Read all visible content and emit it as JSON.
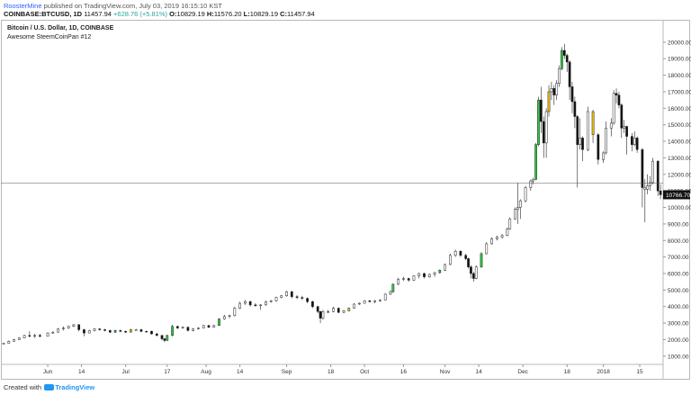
{
  "header": {
    "user": "RoosterMine",
    "published": "published on TradingView.com, July 03, 2019 16:15:10 KST",
    "symbol": "COINBASE:BTCUSD, 1D",
    "last": "11457.94",
    "change": "+628.76 (+5.81%)",
    "open_label": "O:",
    "open": "10829.19",
    "high_label": "H:",
    "high": "11576.20",
    "low_label": "L:",
    "low": "10829.19",
    "close_label": "C:",
    "close": "11457.94"
  },
  "chart_title": "Bitcoin / U.S. Dollar, 1D, COINBASE",
  "chart_subtitle": "Awesome SteemCoinPan #12",
  "footer": {
    "created": "Created with",
    "brand": "TradingView"
  },
  "colors": {
    "green": "#2ecc40",
    "yellow": "#f1c40f",
    "black": "#111111",
    "hollow": "#ffffff",
    "grid_border": "#b8b8b8"
  },
  "chart_data": {
    "type": "candlestick",
    "title": "Bitcoin / U.S. Dollar, 1D, COINBASE",
    "y_ticks": [
      1000,
      2000,
      3000,
      4000,
      5000,
      6000,
      7000,
      8000,
      9000,
      10000,
      11000,
      12000,
      13000,
      14000,
      15000,
      16000,
      17000,
      18000,
      19000,
      20000
    ],
    "y_tick_labels": [
      "1000.00",
      "2000.00",
      "3000.00",
      "4000.00",
      "5000.00",
      "6000.00",
      "7000.00",
      "8000.00",
      "9000.00",
      "10000.00",
      "11000.00",
      "12000.00",
      "13000.00",
      "14000.00",
      "15000.00",
      "16000.00",
      "17000.00",
      "18000.00",
      "19000.00",
      "20000.00"
    ],
    "ylim": [
      500,
      21300
    ],
    "x_range": [
      "2017-05-15",
      "2018-01-24"
    ],
    "x_ticks": [
      {
        "label": "Jun",
        "date": "2017-06-01"
      },
      {
        "label": "14",
        "date": "2017-06-14"
      },
      {
        "label": "Jul",
        "date": "2017-07-01"
      },
      {
        "label": "17",
        "date": "2017-07-17"
      },
      {
        "label": "Aug",
        "date": "2017-08-01"
      },
      {
        "label": "14",
        "date": "2017-08-14"
      },
      {
        "label": "Sep",
        "date": "2017-09-01"
      },
      {
        "label": "18",
        "date": "2017-09-18"
      },
      {
        "label": "Oct",
        "date": "2017-10-01"
      },
      {
        "label": "16",
        "date": "2017-10-16"
      },
      {
        "label": "Nov",
        "date": "2017-11-01"
      },
      {
        "label": "14",
        "date": "2017-11-14"
      },
      {
        "label": "Dec",
        "date": "2017-12-01"
      },
      {
        "label": "18",
        "date": "2017-12-18"
      },
      {
        "label": "2018",
        "date": "2018-01-01"
      },
      {
        "label": "15",
        "date": "2018-01-15"
      }
    ],
    "price_line": {
      "value": 11457.94,
      "label": "11457.94"
    },
    "price_label": {
      "value": 10766.7,
      "label": "10766.70"
    },
    "candles": [
      [
        "2017-05-15",
        1750,
        1800,
        1720,
        1780,
        "h"
      ],
      [
        "2017-05-17",
        1780,
        1950,
        1770,
        1900,
        "h"
      ],
      [
        "2017-05-19",
        1900,
        2050,
        1880,
        2000,
        "h"
      ],
      [
        "2017-05-21",
        2000,
        2150,
        1980,
        2100,
        "h"
      ],
      [
        "2017-05-23",
        2100,
        2300,
        2080,
        2250,
        "h"
      ],
      [
        "2017-05-25",
        2250,
        2500,
        2150,
        2200,
        "b"
      ],
      [
        "2017-05-27",
        2200,
        2350,
        2100,
        2250,
        "h"
      ],
      [
        "2017-05-29",
        2250,
        2350,
        2150,
        2200,
        "b"
      ],
      [
        "2017-06-01",
        2200,
        2450,
        2180,
        2400,
        "h"
      ],
      [
        "2017-06-03",
        2400,
        2500,
        2350,
        2450,
        "h"
      ],
      [
        "2017-06-05",
        2450,
        2700,
        2420,
        2650,
        "h"
      ],
      [
        "2017-06-07",
        2650,
        2800,
        2550,
        2700,
        "h"
      ],
      [
        "2017-06-09",
        2700,
        2850,
        2650,
        2800,
        "h"
      ],
      [
        "2017-06-11",
        2800,
        2950,
        2750,
        2900,
        "h"
      ],
      [
        "2017-06-13",
        2900,
        2950,
        2500,
        2600,
        "b"
      ],
      [
        "2017-06-15",
        2600,
        2650,
        2200,
        2400,
        "b"
      ],
      [
        "2017-06-17",
        2400,
        2600,
        2380,
        2550,
        "h"
      ],
      [
        "2017-06-19",
        2550,
        2700,
        2500,
        2650,
        "h"
      ],
      [
        "2017-06-21",
        2650,
        2700,
        2550,
        2600,
        "b"
      ],
      [
        "2017-06-23",
        2600,
        2650,
        2500,
        2550,
        "b"
      ],
      [
        "2017-06-25",
        2550,
        2600,
        2400,
        2450,
        "b"
      ],
      [
        "2017-06-27",
        2450,
        2600,
        2400,
        2550,
        "g"
      ],
      [
        "2017-06-29",
        2550,
        2600,
        2450,
        2500,
        "b"
      ],
      [
        "2017-07-01",
        2500,
        2550,
        2400,
        2450,
        "b"
      ],
      [
        "2017-07-03",
        2450,
        2650,
        2430,
        2600,
        "y"
      ],
      [
        "2017-07-05",
        2600,
        2650,
        2550,
        2600,
        "h"
      ],
      [
        "2017-07-07",
        2600,
        2650,
        2450,
        2500,
        "b"
      ],
      [
        "2017-07-09",
        2500,
        2550,
        2450,
        2500,
        "b"
      ],
      [
        "2017-07-11",
        2500,
        2550,
        2300,
        2350,
        "b"
      ],
      [
        "2017-07-13",
        2350,
        2400,
        2200,
        2250,
        "b"
      ],
      [
        "2017-07-15",
        2250,
        2300,
        1950,
        2050,
        "b"
      ],
      [
        "2017-07-16",
        2050,
        2100,
        1850,
        1950,
        "b"
      ],
      [
        "2017-07-17",
        1950,
        2300,
        1930,
        2250,
        "g"
      ],
      [
        "2017-07-19",
        2250,
        2900,
        2200,
        2800,
        "g"
      ],
      [
        "2017-07-21",
        2800,
        2850,
        2650,
        2700,
        "b"
      ],
      [
        "2017-07-23",
        2700,
        2800,
        2650,
        2750,
        "h"
      ],
      [
        "2017-07-25",
        2750,
        2800,
        2500,
        2550,
        "b"
      ],
      [
        "2017-07-27",
        2550,
        2700,
        2500,
        2650,
        "h"
      ],
      [
        "2017-07-29",
        2650,
        2750,
        2600,
        2700,
        "h"
      ],
      [
        "2017-07-31",
        2700,
        2900,
        2680,
        2850,
        "h"
      ],
      [
        "2017-08-02",
        2850,
        2900,
        2700,
        2750,
        "b"
      ],
      [
        "2017-08-04",
        2750,
        2900,
        2720,
        2850,
        "h"
      ],
      [
        "2017-08-06",
        2850,
        3300,
        2840,
        3250,
        "g"
      ],
      [
        "2017-08-08",
        3250,
        3500,
        3200,
        3400,
        "h"
      ],
      [
        "2017-08-10",
        3400,
        3500,
        3300,
        3450,
        "h"
      ],
      [
        "2017-08-12",
        3450,
        4000,
        3400,
        3900,
        "h"
      ],
      [
        "2017-08-14",
        3900,
        4300,
        3850,
        4200,
        "h"
      ],
      [
        "2017-08-16",
        4200,
        4400,
        4100,
        4300,
        "h"
      ],
      [
        "2017-08-18",
        4300,
        4350,
        4000,
        4100,
        "b"
      ],
      [
        "2017-08-20",
        4100,
        4200,
        4000,
        4050,
        "b"
      ],
      [
        "2017-08-22",
        4050,
        4150,
        3800,
        4100,
        "h"
      ],
      [
        "2017-08-24",
        4100,
        4350,
        4050,
        4300,
        "h"
      ],
      [
        "2017-08-26",
        4300,
        4400,
        4250,
        4350,
        "h"
      ],
      [
        "2017-08-28",
        4350,
        4600,
        4300,
        4550,
        "h"
      ],
      [
        "2017-08-30",
        4550,
        4700,
        4500,
        4650,
        "h"
      ],
      [
        "2017-09-01",
        4650,
        4950,
        4600,
        4900,
        "h"
      ],
      [
        "2017-09-03",
        4900,
        4950,
        4500,
        4600,
        "b"
      ],
      [
        "2017-09-05",
        4600,
        4700,
        4450,
        4550,
        "b"
      ],
      [
        "2017-09-07",
        4550,
        4650,
        4400,
        4500,
        "b"
      ],
      [
        "2017-09-09",
        4500,
        4550,
        4200,
        4300,
        "b"
      ],
      [
        "2017-09-11",
        4300,
        4350,
        3900,
        4000,
        "b"
      ],
      [
        "2017-09-13",
        4000,
        4050,
        3600,
        3700,
        "b"
      ],
      [
        "2017-09-14",
        3700,
        3750,
        3000,
        3300,
        "b"
      ],
      [
        "2017-09-15",
        3300,
        3800,
        3200,
        3700,
        "h"
      ],
      [
        "2017-09-17",
        3700,
        3800,
        3600,
        3700,
        "h"
      ],
      [
        "2017-09-19",
        3700,
        4000,
        3650,
        3900,
        "h"
      ],
      [
        "2017-09-21",
        3900,
        3950,
        3600,
        3650,
        "b"
      ],
      [
        "2017-09-23",
        3650,
        3800,
        3600,
        3750,
        "h"
      ],
      [
        "2017-09-25",
        3750,
        3950,
        3700,
        3900,
        "y"
      ],
      [
        "2017-09-27",
        3900,
        4200,
        3880,
        4150,
        "h"
      ],
      [
        "2017-09-29",
        4150,
        4250,
        4100,
        4200,
        "h"
      ],
      [
        "2017-10-01",
        4200,
        4400,
        4180,
        4350,
        "h"
      ],
      [
        "2017-10-03",
        4350,
        4400,
        4250,
        4300,
        "b"
      ],
      [
        "2017-10-05",
        4300,
        4400,
        4200,
        4350,
        "h"
      ],
      [
        "2017-10-07",
        4350,
        4450,
        4300,
        4400,
        "h"
      ],
      [
        "2017-10-09",
        4400,
        4800,
        4380,
        4750,
        "h"
      ],
      [
        "2017-10-11",
        4750,
        5000,
        4700,
        4900,
        "h"
      ],
      [
        "2017-10-12",
        4900,
        5400,
        4850,
        5350,
        "g"
      ],
      [
        "2017-10-14",
        5350,
        5750,
        5300,
        5650,
        "h"
      ],
      [
        "2017-10-16",
        5650,
        5800,
        5550,
        5700,
        "h"
      ],
      [
        "2017-10-18",
        5700,
        5750,
        5500,
        5600,
        "b"
      ],
      [
        "2017-10-20",
        5600,
        5900,
        5550,
        5850,
        "h"
      ],
      [
        "2017-10-22",
        5850,
        6050,
        5700,
        6000,
        "h"
      ],
      [
        "2017-10-24",
        6000,
        6050,
        5700,
        5800,
        "b"
      ],
      [
        "2017-10-26",
        5800,
        6000,
        5750,
        5950,
        "h"
      ],
      [
        "2017-10-28",
        5950,
        6100,
        5800,
        6050,
        "h"
      ],
      [
        "2017-10-30",
        6050,
        6250,
        6000,
        6200,
        "g"
      ],
      [
        "2017-11-01",
        6200,
        6600,
        6150,
        6550,
        "h"
      ],
      [
        "2017-11-03",
        6550,
        7200,
        6500,
        7100,
        "h"
      ],
      [
        "2017-11-05",
        7100,
        7450,
        7000,
        7350,
        "h"
      ],
      [
        "2017-11-07",
        7350,
        7400,
        7000,
        7100,
        "b"
      ],
      [
        "2017-11-09",
        7100,
        7200,
        6800,
        6900,
        "b"
      ],
      [
        "2017-11-10",
        6900,
        6950,
        6300,
        6400,
        "b"
      ],
      [
        "2017-11-11",
        6400,
        6500,
        5700,
        6000,
        "b"
      ],
      [
        "2017-11-12",
        6000,
        6100,
        5500,
        5700,
        "b"
      ],
      [
        "2017-11-13",
        5700,
        6500,
        5650,
        6400,
        "h"
      ],
      [
        "2017-11-15",
        6400,
        7300,
        6350,
        7200,
        "g"
      ],
      [
        "2017-11-17",
        7200,
        7900,
        7150,
        7800,
        "h"
      ],
      [
        "2017-11-19",
        7800,
        8200,
        7750,
        8100,
        "h"
      ],
      [
        "2017-11-21",
        8100,
        8300,
        8000,
        8200,
        "h"
      ],
      [
        "2017-11-23",
        8200,
        8400,
        8100,
        8300,
        "h"
      ],
      [
        "2017-11-25",
        8300,
        8800,
        8250,
        8700,
        "h"
      ],
      [
        "2017-11-26",
        8700,
        9400,
        8650,
        9300,
        "h"
      ],
      [
        "2017-11-28",
        9300,
        10000,
        9250,
        9900,
        "h"
      ],
      [
        "2017-11-29",
        9900,
        11500,
        9000,
        10000,
        "h"
      ],
      [
        "2017-11-30",
        10000,
        10500,
        9300,
        10400,
        "h"
      ],
      [
        "2017-12-02",
        10400,
        11300,
        10300,
        11200,
        "h"
      ],
      [
        "2017-12-04",
        11200,
        11700,
        11000,
        11600,
        "h"
      ],
      [
        "2017-12-05",
        11600,
        11800,
        11400,
        11700,
        "h"
      ],
      [
        "2017-12-06",
        11700,
        13900,
        11650,
        13800,
        "g"
      ],
      [
        "2017-12-07",
        13800,
        16700,
        13700,
        16500,
        "g"
      ],
      [
        "2017-12-08",
        16500,
        17300,
        14500,
        15200,
        "b"
      ],
      [
        "2017-12-09",
        15200,
        15500,
        13000,
        13900,
        "b"
      ],
      [
        "2017-12-10",
        13900,
        16000,
        13000,
        15800,
        "h"
      ],
      [
        "2017-12-11",
        15800,
        17400,
        15500,
        17000,
        "y"
      ],
      [
        "2017-12-12",
        17000,
        17600,
        16500,
        17200,
        "h"
      ],
      [
        "2017-12-13",
        17200,
        17400,
        16200,
        16800,
        "b"
      ],
      [
        "2017-12-14",
        16800,
        17700,
        16500,
        17500,
        "h"
      ],
      [
        "2017-12-15",
        17500,
        18600,
        17300,
        18400,
        "h"
      ],
      [
        "2017-12-16",
        18400,
        19700,
        18300,
        19500,
        "g"
      ],
      [
        "2017-12-17",
        19500,
        19900,
        19000,
        19200,
        "b"
      ],
      [
        "2017-12-18",
        19200,
        19300,
        18200,
        18800,
        "b"
      ],
      [
        "2017-12-19",
        18800,
        18900,
        16500,
        17300,
        "b"
      ],
      [
        "2017-12-20",
        17300,
        17600,
        15700,
        16400,
        "b"
      ],
      [
        "2017-12-21",
        16400,
        16700,
        14800,
        15500,
        "b"
      ],
      [
        "2017-12-22",
        15500,
        15600,
        11200,
        13800,
        "b"
      ],
      [
        "2017-12-23",
        13800,
        15400,
        13500,
        14200,
        "h"
      ],
      [
        "2017-12-24",
        14200,
        14300,
        12800,
        13500,
        "b"
      ],
      [
        "2017-12-26",
        13500,
        16100,
        13400,
        15800,
        "h"
      ],
      [
        "2017-12-28",
        15800,
        15900,
        13900,
        14400,
        "y"
      ],
      [
        "2017-12-30",
        14400,
        14500,
        12600,
        12900,
        "b"
      ],
      [
        "2018-01-01",
        12900,
        13400,
        12700,
        13300,
        "h"
      ],
      [
        "2018-01-02",
        13300,
        15200,
        13200,
        14800,
        "h"
      ],
      [
        "2018-01-04",
        14800,
        15400,
        14300,
        15100,
        "h"
      ],
      [
        "2018-01-05",
        15100,
        17100,
        15000,
        16900,
        "h"
      ],
      [
        "2018-01-06",
        16900,
        17200,
        16300,
        16800,
        "b"
      ],
      [
        "2018-01-07",
        16800,
        17000,
        16000,
        16200,
        "b"
      ],
      [
        "2018-01-08",
        16200,
        16300,
        14200,
        14800,
        "b"
      ],
      [
        "2018-01-09",
        14800,
        15300,
        14500,
        14900,
        "h"
      ],
      [
        "2018-01-10",
        14900,
        14950,
        13200,
        14300,
        "b"
      ],
      [
        "2018-01-12",
        14300,
        14500,
        13400,
        13800,
        "b"
      ],
      [
        "2018-01-13",
        13800,
        14600,
        13700,
        14200,
        "h"
      ],
      [
        "2018-01-14",
        14200,
        14300,
        13300,
        13500,
        "b"
      ],
      [
        "2018-01-16",
        13500,
        13600,
        10000,
        11200,
        "b"
      ],
      [
        "2018-01-17",
        11200,
        11700,
        9100,
        11100,
        "h"
      ],
      [
        "2018-01-18",
        11100,
        12000,
        10800,
        11300,
        "h"
      ],
      [
        "2018-01-19",
        11300,
        11900,
        11000,
        11500,
        "h"
      ],
      [
        "2018-01-20",
        11500,
        13000,
        11400,
        12800,
        "h"
      ],
      [
        "2018-01-22",
        12800,
        12850,
        10700,
        11000,
        "b"
      ],
      [
        "2018-01-23",
        11000,
        11400,
        10500,
        10766.7,
        "b"
      ]
    ]
  }
}
